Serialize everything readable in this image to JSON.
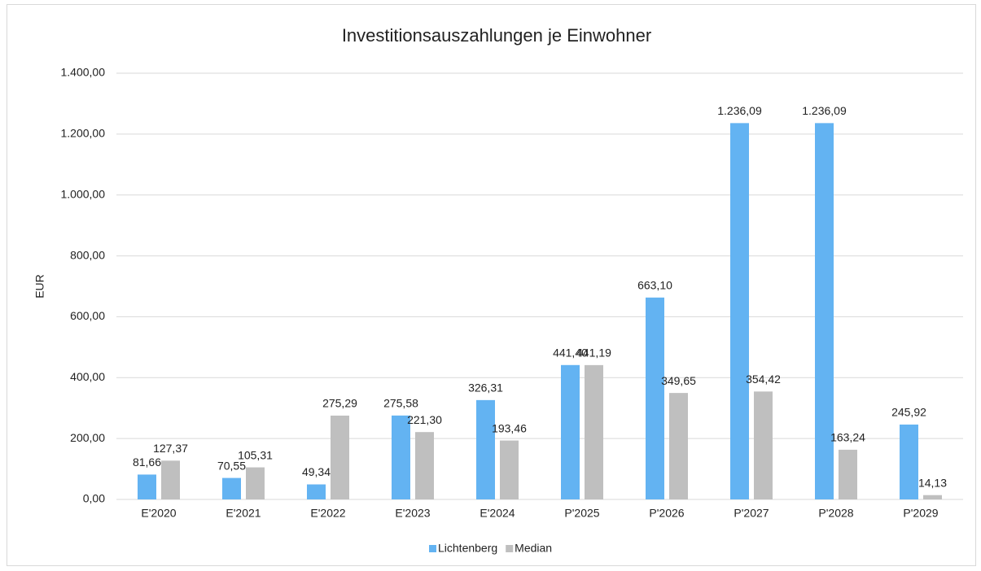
{
  "chart_data": {
    "type": "bar",
    "title": "Investitionsauszahlungen je Einwohner",
    "y_label": "EUR",
    "categories": [
      "E'2020",
      "E'2021",
      "E'2022",
      "E'2023",
      "E'2024",
      "P'2025",
      "P'2026",
      "P'2027",
      "P'2028",
      "P'2029"
    ],
    "series": [
      {
        "name": "Lichtenberg",
        "color": "#63b3f2",
        "values": [
          81.66,
          70.55,
          49.34,
          275.58,
          326.31,
          441.4,
          663.1,
          1236.09,
          1236.09,
          245.92
        ],
        "value_labels": [
          "81,66",
          "70,55",
          "49,34",
          "275,58",
          "326,31",
          "441,40",
          "663,10",
          "1.236,09",
          "1.236,09",
          "245,92"
        ]
      },
      {
        "name": "Median",
        "color": "#bfbfbf",
        "values": [
          127.37,
          105.31,
          275.29,
          221.3,
          193.46,
          441.19,
          349.65,
          354.42,
          163.24,
          14.13
        ],
        "value_labels": [
          "127,37",
          "105,31",
          "275,29",
          "221,30",
          "193,46",
          "441,19",
          "349,65",
          "354,42",
          "163,24",
          "14,13"
        ]
      }
    ],
    "ylim": [
      0,
      1400
    ],
    "yticks": [
      {
        "value": 0,
        "label": "0,00"
      },
      {
        "value": 200,
        "label": "200,00"
      },
      {
        "value": 400,
        "label": "400,00"
      },
      {
        "value": 600,
        "label": "600,00"
      },
      {
        "value": 800,
        "label": "800,00"
      },
      {
        "value": 1000,
        "label": "1.000,00"
      },
      {
        "value": 1200,
        "label": "1.200,00"
      },
      {
        "value": 1400,
        "label": "1.400,00"
      }
    ],
    "grid": true,
    "legend": "bottom"
  }
}
